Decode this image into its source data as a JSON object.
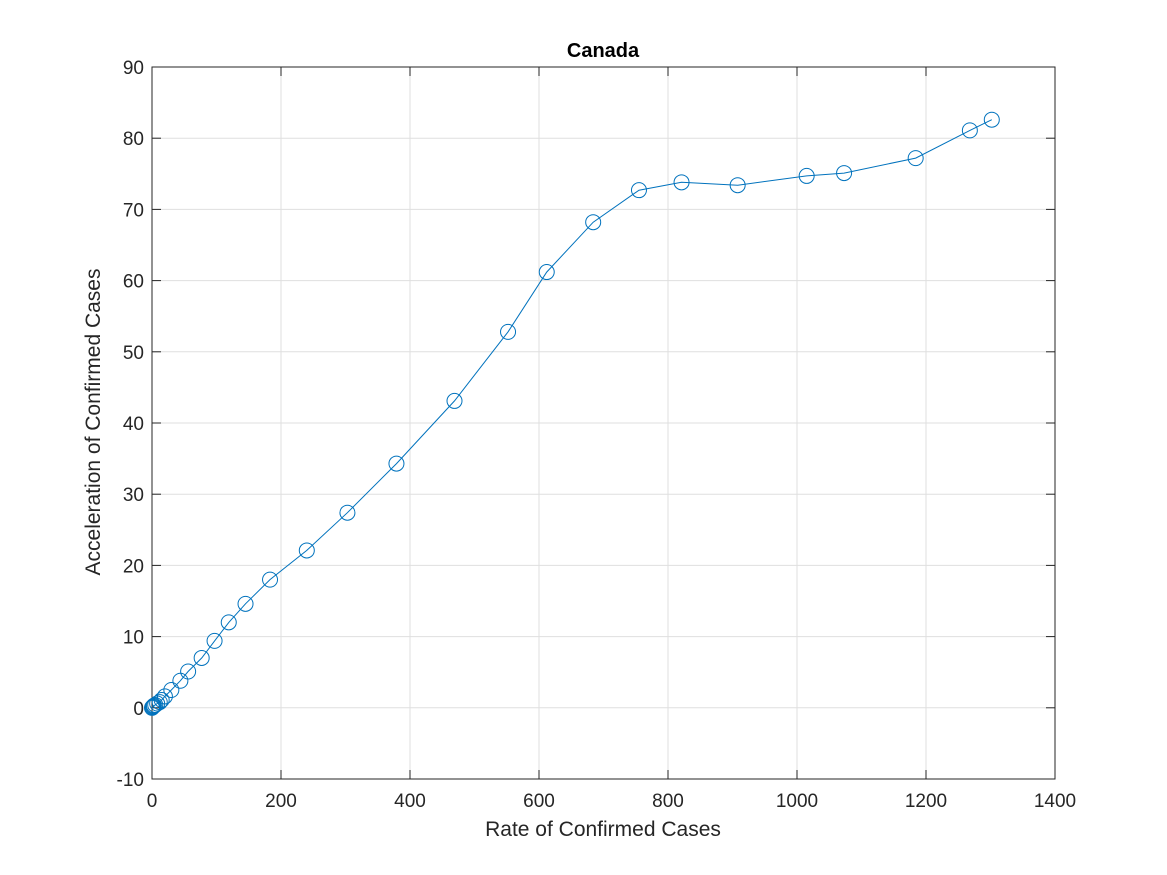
{
  "chart_data": {
    "type": "line",
    "title": "Canada",
    "xlabel": "Rate of Confirmed Cases",
    "ylabel": "Acceleration of Confirmed Cases",
    "xlim": [
      0,
      1400
    ],
    "ylim": [
      -10,
      90
    ],
    "xticks": [
      0,
      200,
      400,
      600,
      800,
      1000,
      1200,
      1400
    ],
    "yticks": [
      -10,
      0,
      10,
      20,
      30,
      40,
      50,
      60,
      70,
      80,
      90
    ],
    "grid": true,
    "marker": "circle",
    "color": "#0072BD",
    "series": [
      {
        "x": [
          0,
          1,
          2,
          3,
          5,
          8,
          12,
          15,
          20,
          30,
          44,
          56,
          77,
          97,
          119,
          145,
          183,
          240,
          303,
          379,
          469,
          552,
          612,
          684,
          755,
          821,
          908,
          1015,
          1073,
          1184,
          1268,
          1302
        ],
        "y": [
          0,
          0.1,
          0.2,
          0.3,
          0.4,
          0.6,
          0.8,
          1.1,
          1.6,
          2.5,
          3.8,
          5.1,
          7.0,
          9.4,
          12.0,
          14.6,
          18.0,
          22.1,
          27.4,
          34.3,
          43.1,
          52.8,
          61.2,
          68.2,
          72.7,
          73.8,
          73.4,
          74.7,
          75.1,
          77.2,
          81.1,
          82.6
        ]
      }
    ]
  }
}
